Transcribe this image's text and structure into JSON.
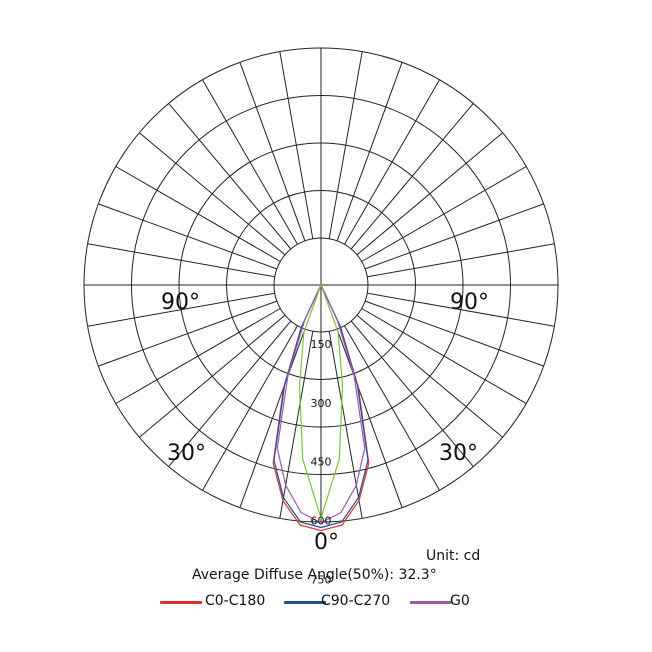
{
  "chart_data": {
    "type": "polar",
    "unit": "Unit: cd",
    "note": "Average Diffuse Angle(50%): 32.3°",
    "angle_labels": [
      "90°",
      "90°",
      "30°",
      "30°",
      "0°"
    ],
    "radial_ticks": [
      "150",
      "300",
      "450",
      "600",
      "750"
    ],
    "radial_max": 750,
    "grid": true,
    "legend_position": "bottom",
    "series": [
      {
        "name": "C0-C180",
        "color": "#e0312f",
        "angles_deg": [
          -30,
          -25,
          -20,
          -15,
          -10,
          -5,
          0,
          5,
          10,
          15,
          20,
          25,
          30
        ],
        "values": [
          0,
          150,
          350,
          590,
          700,
          770,
          785,
          770,
          700,
          590,
          350,
          150,
          0
        ]
      },
      {
        "name": "C90-C270",
        "color": "#1f4e9c",
        "angles_deg": [
          -30,
          -25,
          -20,
          -15,
          -10,
          -5,
          0,
          5,
          10,
          15,
          20,
          25,
          30
        ],
        "values": [
          0,
          140,
          340,
          580,
          690,
          760,
          775,
          760,
          690,
          580,
          340,
          140,
          0
        ]
      },
      {
        "name": "G0",
        "color": "#9b59b6",
        "angles_deg": [
          -30,
          -25,
          -20,
          -15,
          -10,
          -5,
          0,
          5,
          10,
          15,
          20,
          25,
          30
        ],
        "values": [
          0,
          120,
          310,
          540,
          650,
          730,
          760,
          730,
          650,
          540,
          310,
          120,
          0
        ]
      },
      {
        "name": "",
        "color": "#7dc242",
        "angles_deg": [
          -30,
          -20,
          -12,
          -6,
          0,
          6,
          12,
          20,
          30
        ],
        "values": [
          0,
          160,
          330,
          560,
          745,
          560,
          330,
          160,
          0
        ]
      }
    ]
  },
  "legend": {
    "items": [
      "C0-C180",
      "C90-C270",
      "G0"
    ],
    "colors": [
      "#e0312f",
      "#1f4e9c",
      "#9b59b6"
    ]
  }
}
